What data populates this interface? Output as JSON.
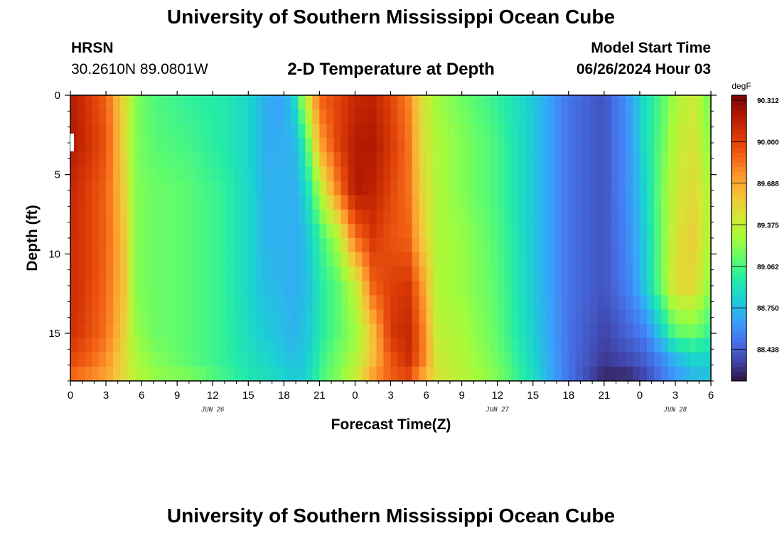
{
  "header": {
    "title": "University of Southern Mississippi Ocean Cube",
    "station_code": "HRSN",
    "coordinates": "30.2610N  89.0801W",
    "subtitle": "2-D Temperature at Depth",
    "model_start_label": "Model Start Time",
    "model_start_value": "06/26/2024 Hour 03"
  },
  "footer": {
    "title": "University of Southern Mississippi Ocean Cube"
  },
  "chart_data": {
    "type": "heatmap",
    "title": "2-D Temperature at Depth",
    "xlabel": "Forecast Time(Z)",
    "ylabel": "Depth (ft)",
    "x_tick_labels": [
      "0",
      "3",
      "6",
      "9",
      "12",
      "15",
      "18",
      "21",
      "0",
      "3",
      "6",
      "9",
      "12",
      "15",
      "18",
      "21",
      "0",
      "3",
      "6"
    ],
    "date_labels": [
      {
        "label": "JUN 26",
        "hour": 12
      },
      {
        "label": "JUN 27",
        "hour": 36
      },
      {
        "label": "JUN 28",
        "hour": 51
      }
    ],
    "x_range_hours": [
      0,
      54
    ],
    "y_tick_labels": [
      "0",
      "5",
      "10",
      "15"
    ],
    "y_range_ft": [
      0,
      18
    ],
    "colorbar": {
      "unit": "degF",
      "min": 88.2,
      "max": 90.35,
      "ticks": [
        "90.312",
        "90.000",
        "89.688",
        "89.375",
        "89.062",
        "88.750",
        "88.438"
      ],
      "tick_values": [
        90.312,
        90.0,
        89.688,
        89.375,
        89.062,
        88.75,
        88.438
      ],
      "colors": [
        "#30123b",
        "#4145ab",
        "#4675ed",
        "#39a2fc",
        "#1bcfd4",
        "#24eca6",
        "#61fc6c",
        "#a4fc3b",
        "#d1e834",
        "#f3c63a",
        "#fe9b2d",
        "#f36315",
        "#d93806",
        "#b11901",
        "#7a0403"
      ]
    },
    "profile_hours": [
      0,
      1,
      3,
      4.5,
      5.5,
      7,
      10,
      13,
      15,
      16.5,
      18,
      19,
      19.8,
      20.3,
      21,
      22.5,
      24,
      25.5,
      27,
      28.5,
      29.5,
      31,
      33,
      36,
      39,
      42,
      45,
      47,
      48.5,
      50,
      51,
      52.5,
      54
    ],
    "profile_depths_ft": [
      0,
      3,
      6,
      9,
      12,
      15,
      16.5,
      18
    ],
    "temperature_degF": [
      [
        90.18,
        90.2,
        90.12,
        90.1,
        90.1,
        90.08,
        90.0,
        89.85
      ],
      [
        90.1,
        90.12,
        90.05,
        90.05,
        90.05,
        90.02,
        89.95,
        89.8
      ],
      [
        89.9,
        89.95,
        89.9,
        89.9,
        89.88,
        89.85,
        89.78,
        89.7
      ],
      [
        89.5,
        89.5,
        89.55,
        89.6,
        89.6,
        89.55,
        89.5,
        89.5
      ],
      [
        89.2,
        89.2,
        89.2,
        89.2,
        89.2,
        89.25,
        89.3,
        89.35
      ],
      [
        89.08,
        89.1,
        89.15,
        89.15,
        89.15,
        89.15,
        89.2,
        89.25
      ],
      [
        89.0,
        89.05,
        89.1,
        89.1,
        89.1,
        89.1,
        89.1,
        89.2
      ],
      [
        88.95,
        88.95,
        89.0,
        89.0,
        89.0,
        89.0,
        89.0,
        89.05
      ],
      [
        88.85,
        88.85,
        88.85,
        88.85,
        88.85,
        88.88,
        88.9,
        88.95
      ],
      [
        88.7,
        88.7,
        88.72,
        88.72,
        88.75,
        88.8,
        88.85,
        88.9
      ],
      [
        88.65,
        88.7,
        88.72,
        88.72,
        88.72,
        88.75,
        88.78,
        88.85
      ],
      [
        88.9,
        88.75,
        88.7,
        88.7,
        88.7,
        88.72,
        88.75,
        88.8
      ],
      [
        89.4,
        89.0,
        88.85,
        88.75,
        88.75,
        88.78,
        88.8,
        88.85
      ],
      [
        89.55,
        89.3,
        89.0,
        88.85,
        88.8,
        88.82,
        88.85,
        88.9
      ],
      [
        89.9,
        89.7,
        89.3,
        89.0,
        88.95,
        88.95,
        89.0,
        89.05
      ],
      [
        90.0,
        90.0,
        89.8,
        89.3,
        89.1,
        89.1,
        89.15,
        89.2
      ],
      [
        90.12,
        90.18,
        90.2,
        89.85,
        89.35,
        89.25,
        89.3,
        89.4
      ],
      [
        90.15,
        90.2,
        90.15,
        90.05,
        89.9,
        89.6,
        89.6,
        89.75
      ],
      [
        90.0,
        90.05,
        90.0,
        89.95,
        90.02,
        90.05,
        89.95,
        89.9
      ],
      [
        89.8,
        89.85,
        89.85,
        89.9,
        90.05,
        90.12,
        90.1,
        89.95
      ],
      [
        89.5,
        89.5,
        89.55,
        89.6,
        89.8,
        89.9,
        89.9,
        89.7
      ],
      [
        89.25,
        89.3,
        89.3,
        89.3,
        89.3,
        89.35,
        89.4,
        89.45
      ],
      [
        89.15,
        89.2,
        89.2,
        89.25,
        89.25,
        89.3,
        89.32,
        89.35
      ],
      [
        89.0,
        89.05,
        89.05,
        89.08,
        89.1,
        89.12,
        89.15,
        89.2
      ],
      [
        88.8,
        88.8,
        88.8,
        88.8,
        88.8,
        88.82,
        88.85,
        88.9
      ],
      [
        88.5,
        88.5,
        88.5,
        88.5,
        88.5,
        88.5,
        88.5,
        88.5
      ],
      [
        88.4,
        88.4,
        88.4,
        88.4,
        88.4,
        88.35,
        88.32,
        88.25
      ],
      [
        88.62,
        88.6,
        88.6,
        88.58,
        88.55,
        88.45,
        88.38,
        88.25
      ],
      [
        88.9,
        88.9,
        88.85,
        88.82,
        88.8,
        88.55,
        88.45,
        88.35
      ],
      [
        89.1,
        89.15,
        89.2,
        89.2,
        89.2,
        88.85,
        88.6,
        88.5
      ],
      [
        89.3,
        89.35,
        89.4,
        89.45,
        89.5,
        89.1,
        88.75,
        88.6
      ],
      [
        89.4,
        89.45,
        89.5,
        89.55,
        89.5,
        89.15,
        88.85,
        88.7
      ],
      [
        89.15,
        89.2,
        89.3,
        89.3,
        89.2,
        89.0,
        88.85,
        88.75
      ]
    ]
  }
}
